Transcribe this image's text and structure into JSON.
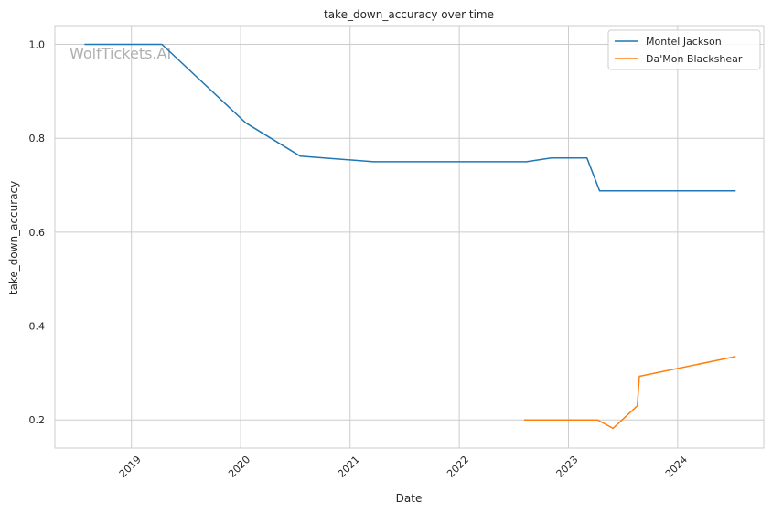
{
  "chart_data": {
    "type": "line",
    "title": "take_down_accuracy over time",
    "xlabel": "Date",
    "ylabel": "take_down_accuracy",
    "watermark": "WolfTickets.AI",
    "x_ticks": [
      "2019",
      "2020",
      "2021",
      "2022",
      "2023",
      "2024"
    ],
    "y_ticks": [
      "0.2",
      "0.4",
      "0.6",
      "0.8",
      "1.0"
    ],
    "xlim": [
      "2018-04-20",
      "2024-10-15"
    ],
    "ylim": [
      0.14,
      1.04
    ],
    "grid": true,
    "legend_position": "top-right",
    "series": [
      {
        "name": "Montel Jackson",
        "color": "#1f77b4",
        "points": [
          [
            "2018-07-28",
            1.0
          ],
          [
            "2019-04-13",
            1.0
          ],
          [
            "2020-01-18",
            0.833
          ],
          [
            "2020-07-18",
            0.762
          ],
          [
            "2021-03-20",
            0.75
          ],
          [
            "2022-08-13",
            0.75
          ],
          [
            "2022-11-05",
            0.758
          ],
          [
            "2023-03-04",
            0.758
          ],
          [
            "2023-04-15",
            0.688
          ],
          [
            "2024-07-13",
            0.688
          ]
        ]
      },
      {
        "name": "Da'Mon Blackshear",
        "color": "#ff7f0e",
        "points": [
          [
            "2022-08-06",
            0.2
          ],
          [
            "2023-04-08",
            0.2
          ],
          [
            "2023-05-30",
            0.182
          ],
          [
            "2023-08-19",
            0.23
          ],
          [
            "2023-08-26",
            0.293
          ],
          [
            "2024-07-13",
            0.335
          ]
        ]
      }
    ]
  }
}
